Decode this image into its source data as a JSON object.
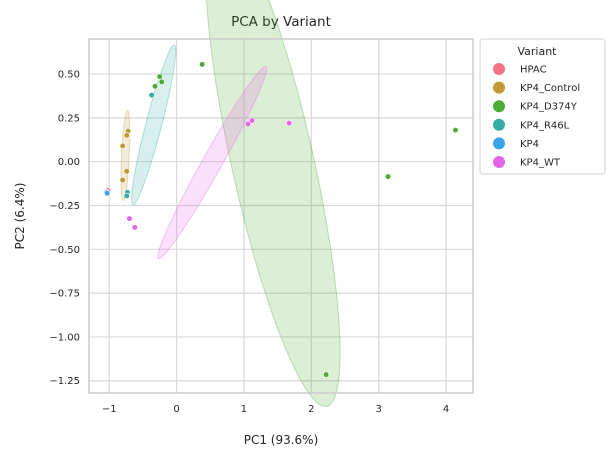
{
  "chart_data": {
    "type": "scatter",
    "title": "PCA by Variant",
    "xlabel": "PC1 (93.6%)",
    "ylabel": "PC2 (6.4%)",
    "xlim": [
      -1.3,
      4.4
    ],
    "ylim": [
      -1.32,
      0.7
    ],
    "xticks": [
      -1,
      0,
      1,
      2,
      3,
      4
    ],
    "xtick_labels": [
      "−1",
      "0",
      "1",
      "2",
      "3",
      "4"
    ],
    "yticks": [
      0.5,
      0.25,
      0.0,
      -0.25,
      -0.5,
      -0.75,
      -1.0,
      -1.25
    ],
    "ytick_labels": [
      "0.50",
      "0.25",
      "0.00",
      "−0.25",
      "−0.50",
      "−0.75",
      "−1.00",
      "−1.25"
    ],
    "grid": true,
    "legend": {
      "title": "Variant",
      "placement": "outside-top-right"
    },
    "series": [
      {
        "name": "HPAC",
        "color": "#f37482",
        "points": [
          [
            -1.02,
            -0.165
          ]
        ],
        "ellipse": null
      },
      {
        "name": "KP4_Control",
        "color": "#c29a35",
        "points": [
          [
            -0.72,
            0.175
          ],
          [
            -0.74,
            0.15
          ],
          [
            -0.8,
            0.09
          ],
          [
            -0.8,
            -0.105
          ],
          [
            -0.74,
            -0.055
          ]
        ],
        "ellipse": {
          "cx": -0.76,
          "cy": 0.035,
          "rx": 0.26,
          "ry": 0.055,
          "angle_deg": 83
        }
      },
      {
        "name": "KP4_D374Y",
        "color": "#4eab34",
        "points": [
          [
            -0.25,
            0.485
          ],
          [
            -0.32,
            0.43
          ],
          [
            -0.22,
            0.455
          ],
          [
            0.38,
            0.555
          ],
          [
            4.14,
            0.18
          ],
          [
            3.14,
            -0.085
          ],
          [
            2.22,
            -1.215
          ]
        ],
        "ellipse": {
          "cx": 1.43,
          "cy": -0.01,
          "rx": 1.6,
          "ry": 0.39,
          "angle_deg": -60
        }
      },
      {
        "name": "KP4_R46L",
        "color": "#35ada4",
        "points": [
          [
            -0.37,
            0.38
          ],
          [
            -0.73,
            -0.175
          ],
          [
            -0.74,
            -0.195
          ]
        ],
        "ellipse": {
          "cx": -0.34,
          "cy": 0.21,
          "rx": 0.55,
          "ry": 0.07,
          "angle_deg": 56
        }
      },
      {
        "name": "KP4",
        "color": "#3ba3ec",
        "points": [
          [
            -1.04,
            -0.175
          ],
          [
            -1.03,
            -0.18
          ]
        ],
        "ellipse": null
      },
      {
        "name": "KP4_WT",
        "color": "#e565e8",
        "points": [
          [
            1.06,
            0.215
          ],
          [
            1.12,
            0.235
          ],
          [
            1.67,
            0.22
          ],
          [
            -0.7,
            -0.325
          ],
          [
            -0.62,
            -0.375
          ]
        ],
        "ellipse": {
          "cx": 0.53,
          "cy": -0.005,
          "rx": 0.97,
          "ry": 0.065,
          "angle_deg": 34.4
        }
      }
    ]
  }
}
